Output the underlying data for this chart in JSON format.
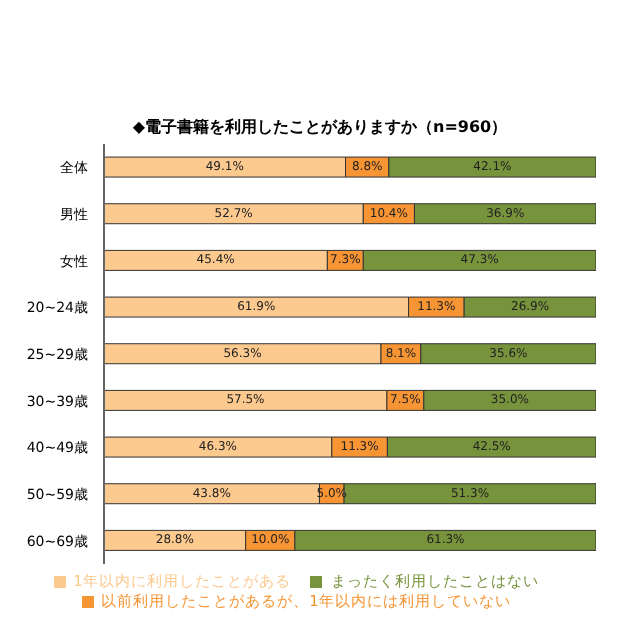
{
  "chart_data": {
    "type": "bar",
    "orientation": "horizontal",
    "stacked": true,
    "title": "◆電子書籍を利用したことがありますか（n=960）",
    "categories": [
      "全体",
      "男性",
      "女性",
      "20~24歳",
      "25~29歳",
      "30~39歳",
      "40~49歳",
      "50~59歳",
      "60~69歳"
    ],
    "series": [
      {
        "name": "1年以内に利用したことがある",
        "color": "#fcc98f",
        "values": [
          49.1,
          52.7,
          45.4,
          61.9,
          56.3,
          57.5,
          46.3,
          43.8,
          28.8
        ],
        "value_labels": [
          "49.1%",
          "52.7%",
          "45.4%",
          "61.9%",
          "56.3%",
          "57.5%",
          "46.3%",
          "43.8%",
          "28.8%"
        ]
      },
      {
        "name": "以前利用したことがあるが、1年以内には利用していない",
        "color": "#f79433",
        "values": [
          8.8,
          10.4,
          7.3,
          11.3,
          8.1,
          7.5,
          11.3,
          5.0,
          10.0
        ],
        "value_labels": [
          "8.8%",
          "10.4%",
          "7.3%",
          "11.3%",
          "8.1%",
          "7.5%",
          "11.3%",
          "5.0%",
          "10.0%"
        ]
      },
      {
        "name": "まったく利用したことはない",
        "color": "#77933c",
        "values": [
          42.1,
          36.9,
          47.3,
          26.9,
          35.6,
          35.0,
          42.5,
          51.3,
          61.3
        ],
        "value_labels": [
          "42.1%",
          "36.9%",
          "47.3%",
          "26.9%",
          "35.6%",
          "35.0%",
          "42.5%",
          "51.3%",
          "61.3%"
        ]
      }
    ],
    "xlim": [
      0,
      100
    ],
    "tick_labels": "y",
    "legend": "bottom"
  }
}
